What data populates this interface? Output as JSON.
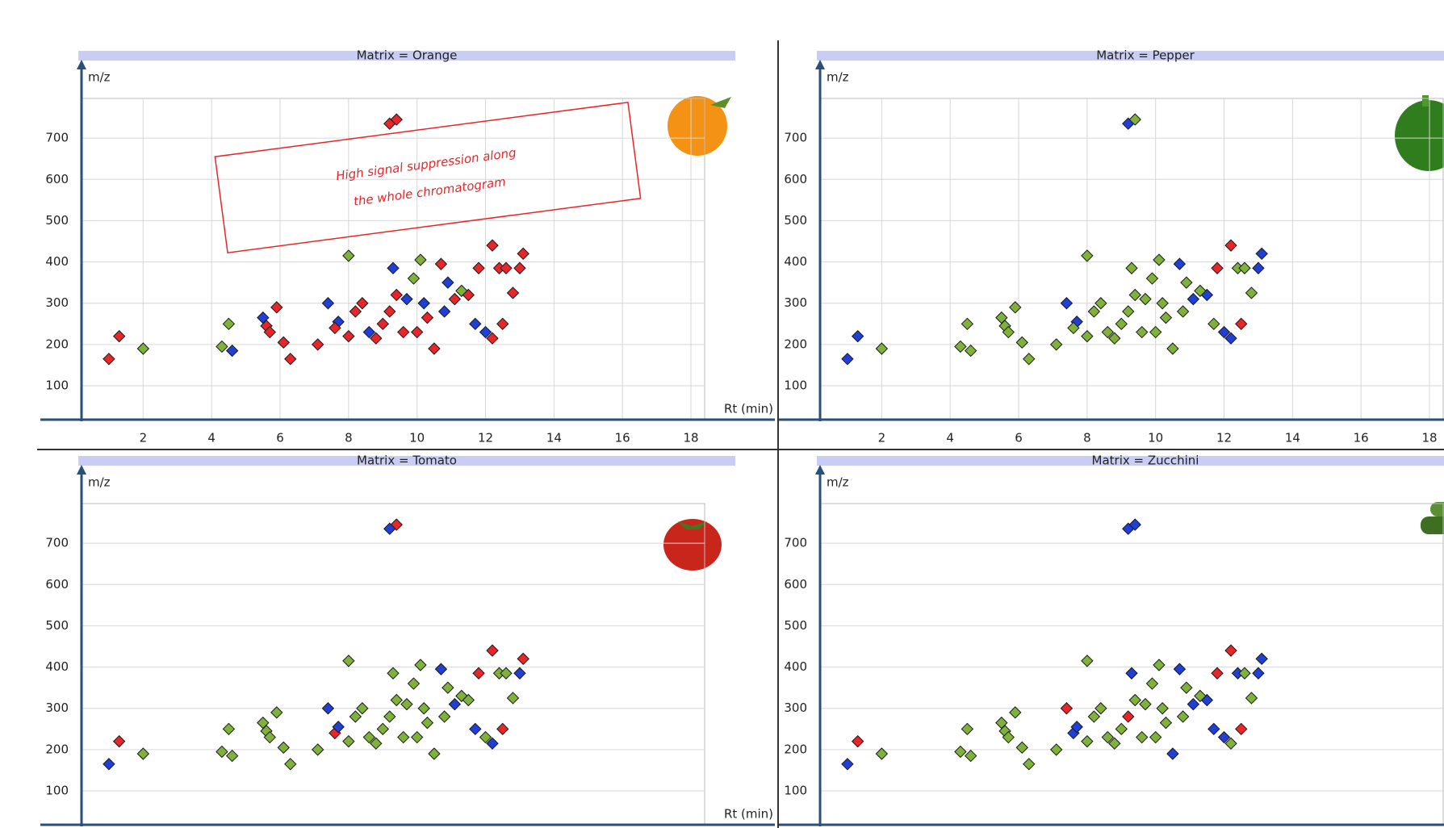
{
  "chart_data": [
    {
      "type": "scatter",
      "title": "Matrix = Orange",
      "x_label": "Rt (min)",
      "y_label": "m/z",
      "xlim": [
        0.2,
        18.4
      ],
      "ylim": [
        18,
        796
      ],
      "xticks": [
        2,
        4,
        6,
        8,
        10,
        12,
        14,
        16,
        18
      ],
      "yticks": [
        100,
        200,
        300,
        400,
        500,
        600,
        700
      ],
      "grid": true,
      "annotations": [
        "High signal suppression  along",
        "the whole chromatogram"
      ],
      "series": [
        {
          "color": "#7fb23a",
          "x": [
            2.0,
            4.3,
            4.5,
            8.0,
            9.9,
            10.1,
            11.3
          ],
          "values": [
            190,
            195,
            250,
            415,
            360,
            405,
            330
          ]
        },
        {
          "color": "#1f3fd6",
          "x": [
            4.6,
            5.5,
            7.4,
            7.7,
            8.6,
            9.3,
            9.7,
            10.2,
            10.8,
            10.9,
            11.7,
            12.0
          ],
          "values": [
            185,
            265,
            300,
            255,
            230,
            385,
            310,
            300,
            280,
            350,
            250,
            230
          ]
        },
        {
          "color": "#e8262a",
          "x": [
            1.0,
            1.3,
            5.6,
            5.7,
            5.9,
            6.1,
            6.3,
            7.1,
            7.6,
            8.0,
            8.2,
            8.4,
            8.8,
            9.0,
            9.2,
            9.4,
            9.2,
            9.4,
            9.6,
            10.0,
            10.3,
            10.5,
            10.7,
            11.1,
            11.5,
            11.8,
            12.2,
            12.2,
            12.4,
            12.6,
            12.5,
            12.8,
            13.0,
            13.1
          ],
          "values": [
            165,
            220,
            245,
            230,
            290,
            205,
            165,
            200,
            240,
            220,
            280,
            300,
            215,
            250,
            280,
            320,
            735,
            745,
            230,
            230,
            265,
            190,
            395,
            310,
            320,
            385,
            215,
            440,
            385,
            385,
            250,
            325,
            385,
            420
          ]
        }
      ]
    },
    {
      "type": "scatter",
      "title": "Matrix = Pepper",
      "y_label": "m/z",
      "xlim": [
        0.2,
        18.4
      ],
      "ylim": [
        18,
        796
      ],
      "xticks": [
        2,
        4,
        6,
        8,
        10,
        12,
        14,
        16,
        18
      ],
      "yticks": [
        100,
        200,
        300,
        400,
        500,
        600,
        700
      ],
      "grid": true,
      "series": [
        {
          "color": "#e8262a",
          "x": [
            11.8,
            12.2,
            12.5
          ],
          "values": [
            385,
            440,
            250
          ]
        },
        {
          "color": "#1f3fd6",
          "x": [
            1.0,
            1.3,
            7.4,
            7.7,
            9.2,
            10.7,
            11.1,
            11.5,
            12.0,
            12.2,
            13.0,
            13.1
          ],
          "values": [
            165,
            220,
            300,
            255,
            735,
            395,
            310,
            320,
            230,
            215,
            385,
            420
          ]
        },
        {
          "color": "#7fb23a",
          "x": [
            2.0,
            4.3,
            4.5,
            4.6,
            5.5,
            5.6,
            5.7,
            5.9,
            6.1,
            6.3,
            7.1,
            7.6,
            8.0,
            8.0,
            8.2,
            8.4,
            8.6,
            8.8,
            9.0,
            9.2,
            9.3,
            9.4,
            9.4,
            9.6,
            9.7,
            9.9,
            10.0,
            10.1,
            10.2,
            10.3,
            10.5,
            10.8,
            10.9,
            11.3,
            11.7,
            12.4,
            12.6,
            12.8
          ],
          "values": [
            190,
            195,
            250,
            185,
            265,
            245,
            230,
            290,
            205,
            165,
            200,
            240,
            415,
            220,
            280,
            300,
            230,
            215,
            250,
            280,
            385,
            320,
            745,
            230,
            310,
            360,
            230,
            405,
            300,
            265,
            190,
            280,
            350,
            330,
            250,
            385,
            385,
            325
          ]
        }
      ]
    },
    {
      "type": "scatter",
      "title": "Matrix = Tomato",
      "x_label": "Rt (min)",
      "y_label": "m/z",
      "xlim": [
        0.2,
        18.4
      ],
      "ylim": [
        18,
        796
      ],
      "yticks": [
        100,
        200,
        300,
        400,
        500,
        600,
        700
      ],
      "grid": true,
      "series": [
        {
          "color": "#e8262a",
          "x": [
            1.3,
            7.6,
            9.4,
            11.8,
            12.2,
            12.5,
            13.1
          ],
          "values": [
            220,
            240,
            745,
            385,
            440,
            250,
            420
          ]
        },
        {
          "color": "#1f3fd6",
          "x": [
            1.0,
            7.4,
            7.7,
            9.2,
            10.7,
            11.1,
            11.7,
            12.2,
            13.0
          ],
          "values": [
            165,
            300,
            255,
            735,
            395,
            310,
            250,
            215,
            385
          ]
        },
        {
          "color": "#7fb23a",
          "x": [
            2.0,
            4.3,
            4.5,
            4.6,
            5.5,
            5.6,
            5.7,
            5.9,
            6.1,
            6.3,
            7.1,
            8.0,
            8.0,
            8.2,
            8.4,
            8.6,
            8.8,
            9.0,
            9.2,
            9.3,
            9.4,
            9.6,
            9.7,
            9.9,
            10.0,
            10.1,
            10.2,
            10.3,
            10.5,
            10.8,
            10.9,
            11.3,
            11.5,
            12.0,
            12.4,
            12.6,
            12.8
          ],
          "values": [
            190,
            195,
            250,
            185,
            265,
            245,
            230,
            290,
            205,
            165,
            200,
            415,
            220,
            280,
            300,
            230,
            215,
            250,
            280,
            385,
            320,
            230,
            310,
            360,
            230,
            405,
            300,
            265,
            190,
            280,
            350,
            330,
            320,
            230,
            385,
            385,
            325
          ]
        }
      ]
    },
    {
      "type": "scatter",
      "title": "Matrix = Zucchini",
      "y_label": "m/z",
      "xlim": [
        0.2,
        18.4
      ],
      "ylim": [
        18,
        796
      ],
      "yticks": [
        100,
        200,
        300,
        400,
        500,
        600,
        700
      ],
      "grid": true,
      "series": [
        {
          "color": "#e8262a",
          "x": [
            1.3,
            7.4,
            9.2,
            11.8,
            12.2,
            12.5
          ],
          "values": [
            220,
            300,
            280,
            385,
            440,
            250
          ]
        },
        {
          "color": "#1f3fd6",
          "x": [
            1.0,
            7.6,
            7.7,
            9.3,
            9.2,
            9.4,
            10.5,
            10.7,
            11.1,
            11.5,
            11.7,
            12.0,
            12.4,
            13.0,
            13.1
          ],
          "values": [
            165,
            240,
            255,
            385,
            735,
            745,
            190,
            395,
            310,
            320,
            250,
            230,
            385,
            385,
            420
          ]
        },
        {
          "color": "#7fb23a",
          "x": [
            2.0,
            4.3,
            4.5,
            4.6,
            5.5,
            5.6,
            5.7,
            5.9,
            6.1,
            6.3,
            7.1,
            8.0,
            8.0,
            8.2,
            8.4,
            8.6,
            8.8,
            9.0,
            9.4,
            9.6,
            9.7,
            9.9,
            10.0,
            10.1,
            10.2,
            10.3,
            10.8,
            10.9,
            11.3,
            12.2,
            12.6,
            12.8
          ],
          "values": [
            190,
            195,
            250,
            185,
            265,
            245,
            230,
            290,
            205,
            165,
            200,
            415,
            220,
            280,
            300,
            230,
            215,
            250,
            320,
            230,
            310,
            360,
            230,
            405,
            300,
            265,
            280,
            350,
            330,
            215,
            385,
            325
          ]
        }
      ]
    }
  ]
}
